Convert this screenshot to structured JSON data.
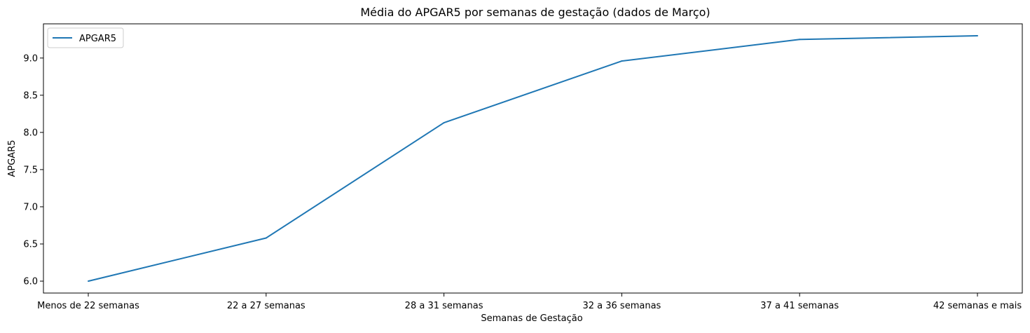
{
  "chart_data": {
    "type": "line",
    "title": "Média do APGAR5 por semanas de gestação (dados de Março)",
    "xlabel": "Semanas de Gestação",
    "ylabel": "APGAR5",
    "categories": [
      "Menos de 22 semanas",
      "22 a 27 semanas",
      "28 a 31 semanas",
      "32 a 36 semanas",
      "37 a 41 semanas",
      "42 semanas e mais"
    ],
    "series": [
      {
        "name": "APGAR5",
        "values": [
          6.0,
          6.58,
          8.13,
          8.96,
          9.25,
          9.3
        ],
        "color": "#1f77b4"
      }
    ],
    "ylim": [
      5.84,
      9.46
    ],
    "yticks": [
      6.0,
      6.5,
      7.0,
      7.5,
      8.0,
      8.5,
      9.0
    ],
    "ytick_labels": [
      "6.0",
      "6.5",
      "7.0",
      "7.5",
      "8.0",
      "8.5",
      "9.0"
    ],
    "grid": false,
    "legend": {
      "position": "top-left"
    }
  }
}
